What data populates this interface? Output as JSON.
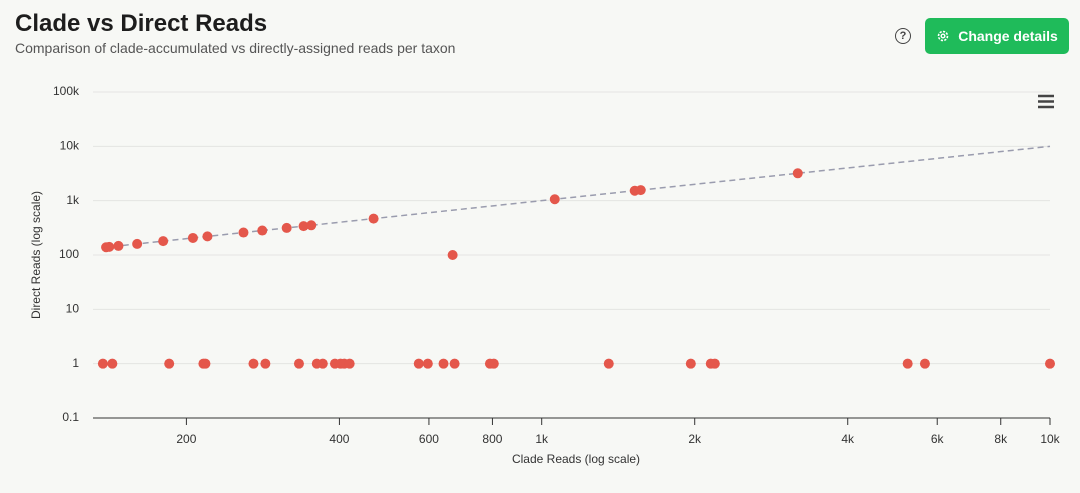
{
  "header": {
    "title": "Clade vs Direct Reads",
    "subtitle": "Comparison of clade-accumulated vs directly-assigned reads per taxon",
    "button": "Change details"
  },
  "chart_data": {
    "type": "scatter",
    "x_label": "Clade Reads (log scale)",
    "y_label": "Direct Reads (log scale)",
    "log_x": true,
    "log_y": true,
    "grid": true,
    "diagonal": true,
    "color": "#e4574b",
    "diagonal_color": "#9a9cae",
    "xlim": [
      131,
      10000
    ],
    "ylim": [
      0.1,
      100000
    ],
    "xticks": [
      200,
      400,
      600,
      800,
      {
        "value": 1000,
        "label": "1k"
      },
      {
        "value": 2000,
        "label": "2k"
      },
      {
        "value": 4000,
        "label": "4k"
      },
      {
        "value": 6000,
        "label": "6k"
      },
      {
        "value": 8000,
        "label": "8k"
      },
      {
        "value": 10000,
        "label": "10k"
      }
    ],
    "yticks": [
      0.1,
      1,
      10,
      100,
      {
        "value": 1000,
        "label": "1k"
      },
      {
        "value": 10000,
        "label": "10k"
      },
      {
        "value": 100000,
        "label": "100k"
      }
    ],
    "x": [
      139,
      141,
      147,
      160,
      180,
      206,
      220,
      259,
      282,
      315,
      340,
      352,
      467,
      1061,
      1524,
      1566,
      3190,
      668,
      137,
      143,
      185,
      216,
      218,
      271,
      286,
      333,
      361,
      371,
      392,
      402,
      409,
      419,
      573,
      597,
      641,
      674,
      791,
      805,
      1355,
      1965,
      2151,
      2191,
      5248,
      5675,
      10000
    ],
    "values": [
      139,
      141,
      147,
      160,
      180,
      206,
      220,
      259,
      282,
      315,
      340,
      352,
      467,
      1061,
      1524,
      1566,
      3190,
      100,
      1,
      1,
      1,
      1,
      1,
      1,
      1,
      1,
      1,
      1,
      1,
      1,
      1,
      1,
      1,
      1,
      1,
      1,
      1,
      1,
      1,
      1,
      1,
      1,
      1,
      1,
      1
    ]
  }
}
